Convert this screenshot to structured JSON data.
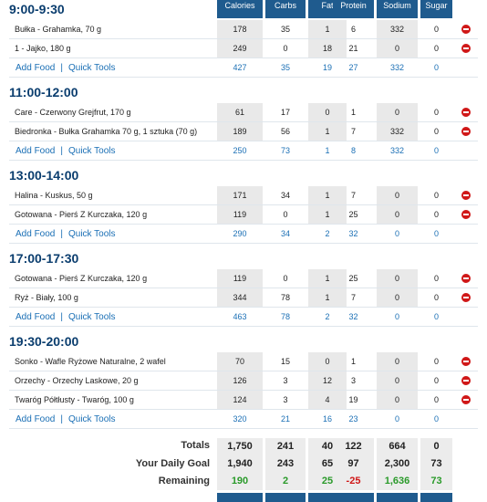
{
  "headers": {
    "calories": "Calories",
    "carbs": "Carbs",
    "fat": "Fat",
    "protein": "Protein",
    "sodium": "Sodium",
    "sugar": "Sugar"
  },
  "links": {
    "add_food": "Add Food",
    "quick_tools": "Quick Tools"
  },
  "meals": [
    {
      "title": "9:00-9:30",
      "foods": [
        {
          "name": "Bułka - Grahamka, 70 g",
          "cal": "178",
          "carbs": "35",
          "fat": "1",
          "protein": "6",
          "sodium": "332",
          "sugar": "0"
        },
        {
          "name": "1 - Jajko, 180 g",
          "cal": "249",
          "carbs": "0",
          "fat": "18",
          "protein": "21",
          "sodium": "0",
          "sugar": "0"
        }
      ],
      "totals": {
        "cal": "427",
        "carbs": "35",
        "fat": "19",
        "protein": "27",
        "sodium": "332",
        "sugar": "0"
      }
    },
    {
      "title": "11:00-12:00",
      "foods": [
        {
          "name": "Care - Czerwony Grejfrut, 170 g",
          "cal": "61",
          "carbs": "17",
          "fat": "0",
          "protein": "1",
          "sodium": "0",
          "sugar": "0"
        },
        {
          "name": "Biedronka - Bułka Grahamka 70 g, 1 sztuka (70 g)",
          "cal": "189",
          "carbs": "56",
          "fat": "1",
          "protein": "7",
          "sodium": "332",
          "sugar": "0"
        }
      ],
      "totals": {
        "cal": "250",
        "carbs": "73",
        "fat": "1",
        "protein": "8",
        "sodium": "332",
        "sugar": "0"
      }
    },
    {
      "title": "13:00-14:00",
      "foods": [
        {
          "name": "Halina - Kuskus, 50 g",
          "cal": "171",
          "carbs": "34",
          "fat": "1",
          "protein": "7",
          "sodium": "0",
          "sugar": "0"
        },
        {
          "name": "Gotowana - Pierś Z Kurczaka, 120 g",
          "cal": "119",
          "carbs": "0",
          "fat": "1",
          "protein": "25",
          "sodium": "0",
          "sugar": "0"
        }
      ],
      "totals": {
        "cal": "290",
        "carbs": "34",
        "fat": "2",
        "protein": "32",
        "sodium": "0",
        "sugar": "0"
      }
    },
    {
      "title": "17:00-17:30",
      "foods": [
        {
          "name": "Gotowana - Pierś Z Kurczaka, 120 g",
          "cal": "119",
          "carbs": "0",
          "fat": "1",
          "protein": "25",
          "sodium": "0",
          "sugar": "0"
        },
        {
          "name": "Ryż - Biały, 100 g",
          "cal": "344",
          "carbs": "78",
          "fat": "1",
          "protein": "7",
          "sodium": "0",
          "sugar": "0"
        }
      ],
      "totals": {
        "cal": "463",
        "carbs": "78",
        "fat": "2",
        "protein": "32",
        "sodium": "0",
        "sugar": "0"
      }
    },
    {
      "title": "19:30-20:00",
      "foods": [
        {
          "name": "Sonko - Wafle Ryżowe Naturalne, 2 wafel",
          "cal": "70",
          "carbs": "15",
          "fat": "0",
          "protein": "1",
          "sodium": "0",
          "sugar": "0"
        },
        {
          "name": "Orzechy - Orzechy Laskowe, 20 g",
          "cal": "126",
          "carbs": "3",
          "fat": "12",
          "protein": "3",
          "sodium": "0",
          "sugar": "0"
        },
        {
          "name": "Twaróg Półtłusty - Twaróg, 100 g",
          "cal": "124",
          "carbs": "3",
          "fat": "4",
          "protein": "19",
          "sodium": "0",
          "sugar": "0"
        }
      ],
      "totals": {
        "cal": "320",
        "carbs": "21",
        "fat": "16",
        "protein": "23",
        "sodium": "0",
        "sugar": "0"
      }
    }
  ],
  "summary": {
    "totals": {
      "label": "Totals",
      "cal": "1,750",
      "carbs": "241",
      "fat": "40",
      "protein": "122",
      "sodium": "664",
      "sugar": "0"
    },
    "goal": {
      "label": "Your Daily Goal",
      "cal": "1,940",
      "carbs": "243",
      "fat": "65",
      "protein": "97",
      "sodium": "2,300",
      "sugar": "73"
    },
    "remaining": {
      "label": "Remaining",
      "cal": "190",
      "carbs": "2",
      "fat": "25",
      "protein": "-25",
      "sodium": "1,636",
      "sugar": "73"
    }
  },
  "colors": {
    "header": "#1f5b8e",
    "link": "#1a6fb5",
    "positive": "#2a9a2a",
    "negative": "#d01818"
  }
}
